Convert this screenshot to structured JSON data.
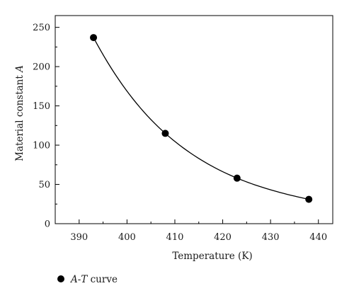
{
  "chart_data": {
    "type": "scatter",
    "title": "",
    "xlabel": "Temperature (K)",
    "ylabel_prefix": "Material constant ",
    "ylabel_var": "A",
    "xlim": [
      385,
      443
    ],
    "ylim": [
      0,
      265
    ],
    "xticks": [
      390,
      400,
      410,
      420,
      430,
      440
    ],
    "yticks": [
      0,
      50,
      100,
      150,
      200,
      250
    ],
    "grid": false,
    "legend_position": "bottom-left",
    "series": [
      {
        "name": "A-T curve",
        "name_parts": {
          "var1": "A",
          "sep": "-",
          "var2": "T",
          "rest": " curve"
        },
        "marker": "circle",
        "color": "#000000",
        "x": [
          393,
          408,
          423,
          438
        ],
        "y": [
          237,
          115,
          58,
          31
        ],
        "fit_curve": true
      }
    ]
  }
}
